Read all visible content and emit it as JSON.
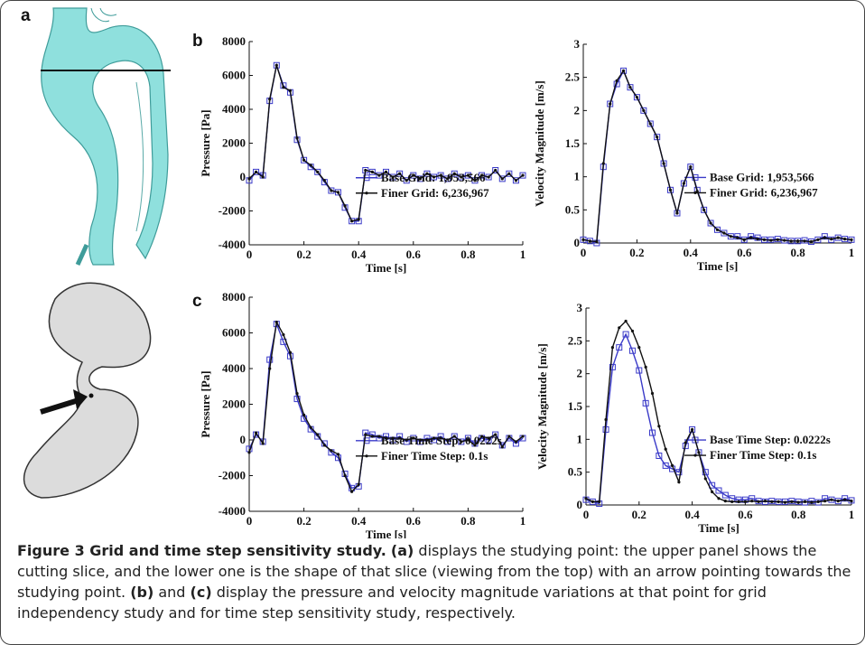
{
  "panel_labels": [
    "a",
    "b",
    "c"
  ],
  "chart_data": [
    {
      "type": "line",
      "ylabel": "Pressure [Pa]",
      "xlabel": "Time [s]",
      "xlim": [
        0,
        1
      ],
      "xticks": [
        0,
        0.2,
        0.4,
        0.6,
        0.8,
        1
      ],
      "ylim": [
        -4000,
        8000
      ],
      "yticks": [
        -4000,
        -2000,
        0,
        2000,
        4000,
        6000,
        8000
      ],
      "legend": "right",
      "x": [
        0,
        0.025,
        0.05,
        0.075,
        0.1,
        0.125,
        0.15,
        0.175,
        0.2,
        0.225,
        0.25,
        0.275,
        0.3,
        0.325,
        0.35,
        0.375,
        0.4,
        0.425,
        0.45,
        0.475,
        0.5,
        0.525,
        0.55,
        0.575,
        0.6,
        0.625,
        0.65,
        0.675,
        0.7,
        0.725,
        0.75,
        0.775,
        0.8,
        0.825,
        0.85,
        0.875,
        0.9,
        0.925,
        0.95,
        0.975,
        1
      ],
      "series": [
        {
          "name": "Base Grid: 1,953,566",
          "color": "#3a3ac8",
          "marker": "square",
          "values": [
            -200,
            300,
            100,
            4500,
            6600,
            5400,
            5000,
            2200,
            1000,
            600,
            300,
            -300,
            -800,
            -900,
            -1800,
            -2600,
            -2600,
            400,
            300,
            100,
            300,
            0,
            200,
            -200,
            100,
            -100,
            200,
            0,
            100,
            -100,
            200,
            0,
            100,
            -200,
            100,
            0,
            400,
            -100,
            200,
            -200,
            100
          ]
        },
        {
          "name": "Finer Grid: 6,236,967",
          "color": "#111111",
          "marker": "dot",
          "values": [
            -100,
            300,
            0,
            4600,
            6600,
            5300,
            5100,
            2300,
            1000,
            700,
            300,
            -200,
            -800,
            -900,
            -1700,
            -2600,
            -2500,
            400,
            300,
            100,
            300,
            0,
            200,
            -200,
            100,
            -100,
            200,
            0,
            100,
            -100,
            200,
            0,
            100,
            -200,
            100,
            0,
            400,
            -100,
            200,
            -200,
            100
          ]
        }
      ]
    },
    {
      "type": "line",
      "ylabel": "Velocity Magnitude [m/s]",
      "xlabel": "Time [s]",
      "xlim": [
        0,
        1
      ],
      "xticks": [
        0,
        0.2,
        0.4,
        0.6,
        0.8,
        1
      ],
      "ylim": [
        0,
        3
      ],
      "yticks": [
        0,
        0.5,
        1,
        1.5,
        2,
        2.5,
        3
      ],
      "legend": "right",
      "x": [
        0,
        0.025,
        0.05,
        0.075,
        0.1,
        0.125,
        0.15,
        0.175,
        0.2,
        0.225,
        0.25,
        0.275,
        0.3,
        0.325,
        0.35,
        0.375,
        0.4,
        0.425,
        0.45,
        0.475,
        0.5,
        0.525,
        0.55,
        0.575,
        0.6,
        0.625,
        0.65,
        0.675,
        0.7,
        0.725,
        0.75,
        0.775,
        0.8,
        0.825,
        0.85,
        0.875,
        0.9,
        0.925,
        0.95,
        0.975,
        1
      ],
      "series": [
        {
          "name": "Base Grid: 1,953,566",
          "color": "#3a3ac8",
          "marker": "square",
          "values": [
            0.05,
            0.03,
            0,
            1.15,
            2.1,
            2.4,
            2.6,
            2.35,
            2.2,
            2,
            1.8,
            1.6,
            1.2,
            0.8,
            0.45,
            0.9,
            1.15,
            0.8,
            0.5,
            0.3,
            0.2,
            0.15,
            0.1,
            0.1,
            0.05,
            0.1,
            0.08,
            0.05,
            0.05,
            0.06,
            0.04,
            0.03,
            0.03,
            0.04,
            0.02,
            0.05,
            0.1,
            0.05,
            0.08,
            0.06,
            0.05
          ]
        },
        {
          "name": "Finer Grid: 6,236,967",
          "color": "#111111",
          "marker": "dot",
          "values": [
            0.05,
            0.03,
            0.02,
            1.2,
            2.1,
            2.45,
            2.6,
            2.35,
            2.2,
            2,
            1.8,
            1.6,
            1.2,
            0.8,
            0.45,
            0.9,
            1.15,
            0.78,
            0.5,
            0.3,
            0.2,
            0.15,
            0.1,
            0.08,
            0.05,
            0.08,
            0.06,
            0.05,
            0.04,
            0.05,
            0.04,
            0.03,
            0.03,
            0.03,
            0.02,
            0.05,
            0.08,
            0.06,
            0.08,
            0.06,
            0.05
          ]
        }
      ]
    },
    {
      "type": "line",
      "ylabel": "Pressure [Pa]",
      "xlabel": "Time [s]",
      "xlim": [
        0,
        1
      ],
      "xticks": [
        0,
        0.2,
        0.4,
        0.6,
        0.8,
        1
      ],
      "ylim": [
        -4000,
        8000
      ],
      "yticks": [
        -4000,
        -2000,
        0,
        2000,
        4000,
        6000,
        8000
      ],
      "legend": "right",
      "x": [
        0,
        0.025,
        0.05,
        0.075,
        0.1,
        0.125,
        0.15,
        0.175,
        0.2,
        0.225,
        0.25,
        0.275,
        0.3,
        0.325,
        0.35,
        0.375,
        0.4,
        0.425,
        0.45,
        0.475,
        0.5,
        0.525,
        0.55,
        0.575,
        0.6,
        0.625,
        0.65,
        0.675,
        0.7,
        0.725,
        0.75,
        0.775,
        0.8,
        0.825,
        0.85,
        0.875,
        0.9,
        0.925,
        0.95,
        0.975,
        1
      ],
      "series": [
        {
          "name": "Base Time Step: 0.0222s",
          "color": "#3a3ac8",
          "marker": "square",
          "values": [
            -500,
            300,
            -100,
            4500,
            6500,
            5500,
            4700,
            2300,
            1200,
            600,
            200,
            -200,
            -700,
            -1000,
            -1900,
            -2700,
            -2600,
            400,
            300,
            100,
            200,
            0,
            200,
            -100,
            100,
            -100,
            100,
            0,
            200,
            -100,
            200,
            -100,
            100,
            -200,
            100,
            0,
            300,
            -300,
            100,
            -200,
            100
          ]
        },
        {
          "name": "Finer Time Step: 0.1s",
          "color": "#111111",
          "marker": "dot",
          "values": [
            -700,
            400,
            -200,
            4000,
            6600,
            5900,
            4900,
            2600,
            1400,
            700,
            300,
            -300,
            -600,
            -800,
            -2000,
            -2900,
            -2500,
            300,
            200,
            200,
            100,
            100,
            100,
            0,
            100,
            0,
            0,
            100,
            100,
            0,
            200,
            -100,
            0,
            -300,
            200,
            100,
            300,
            -400,
            200,
            -100,
            200
          ]
        }
      ]
    },
    {
      "type": "line",
      "ylabel": "Velocity Magnitude [m/s]",
      "xlabel": "Time [s]",
      "xlim": [
        0,
        1
      ],
      "xticks": [
        0,
        0.2,
        0.4,
        0.6,
        0.8,
        1
      ],
      "ylim": [
        0,
        3
      ],
      "yticks": [
        0,
        0.5,
        1,
        1.5,
        2,
        2.5,
        3
      ],
      "legend": "right",
      "x": [
        0,
        0.025,
        0.05,
        0.075,
        0.1,
        0.125,
        0.15,
        0.175,
        0.2,
        0.225,
        0.25,
        0.275,
        0.3,
        0.325,
        0.35,
        0.375,
        0.4,
        0.425,
        0.45,
        0.475,
        0.5,
        0.525,
        0.55,
        0.575,
        0.6,
        0.625,
        0.65,
        0.675,
        0.7,
        0.725,
        0.75,
        0.775,
        0.8,
        0.825,
        0.85,
        0.875,
        0.9,
        0.925,
        0.95,
        0.975,
        1
      ],
      "series": [
        {
          "name": "Base Time Step: 0.0222s",
          "color": "#3a3ac8",
          "marker": "square",
          "values": [
            0.08,
            0.05,
            0.02,
            1.15,
            2.1,
            2.4,
            2.6,
            2.35,
            2.05,
            1.55,
            1.1,
            0.75,
            0.6,
            0.55,
            0.5,
            0.9,
            1.15,
            0.8,
            0.5,
            0.3,
            0.22,
            0.15,
            0.1,
            0.08,
            0.08,
            0.1,
            0.06,
            0.05,
            0.06,
            0.05,
            0.05,
            0.06,
            0.05,
            0.04,
            0.06,
            0.04,
            0.1,
            0.08,
            0.06,
            0.1,
            0.07
          ]
        },
        {
          "name": "Finer Time Step: 0.1s",
          "color": "#111111",
          "marker": "dot",
          "values": [
            0.1,
            0.05,
            0.05,
            1.3,
            2.4,
            2.7,
            2.8,
            2.65,
            2.4,
            2.1,
            1.7,
            1.2,
            0.85,
            0.6,
            0.35,
            0.95,
            1.15,
            0.8,
            0.4,
            0.2,
            0.1,
            0.06,
            0.05,
            0.05,
            0.05,
            0.06,
            0.05,
            0.06,
            0.05,
            0.05,
            0.04,
            0.05,
            0.04,
            0.05,
            0.04,
            0.05,
            0.06,
            0.08,
            0.06,
            0.08,
            0.06
          ]
        }
      ]
    }
  ],
  "caption": {
    "runs": [
      {
        "text": "Figure 3 Grid and time step sensitivity study.",
        "bold": true
      },
      {
        "text": " ",
        "bold": false
      },
      {
        "text": "(a)",
        "bold": true
      },
      {
        "text": " displays the studying point: the upper panel shows the cutting slice, and the lower one is the shape of that slice (viewing from the top) with an arrow pointing towards the studying point. ",
        "bold": false
      },
      {
        "text": "(b)",
        "bold": true
      },
      {
        "text": " and ",
        "bold": false
      },
      {
        "text": "(c)",
        "bold": true
      },
      {
        "text": " display the pressure and velocity magnitude variations at that point for grid independency study and for time step sensitivity study, respectively.",
        "bold": false
      }
    ]
  }
}
